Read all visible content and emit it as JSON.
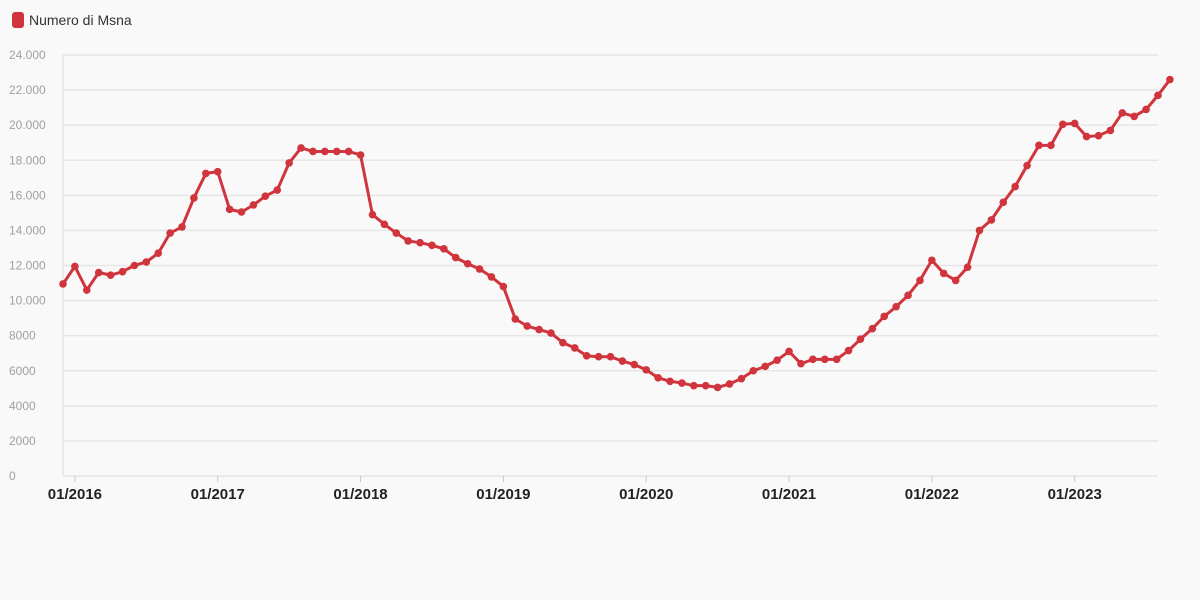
{
  "legend": {
    "label": "Numero di Msna",
    "color": "#d0343c"
  },
  "chart_data": {
    "type": "line",
    "title": "",
    "xlabel": "",
    "ylabel": "",
    "ylim": [
      0,
      24000
    ],
    "grid": true,
    "legend_position": "top-left",
    "y_ticks": [
      {
        "value": 0,
        "label": "0"
      },
      {
        "value": 2000,
        "label": "2000"
      },
      {
        "value": 4000,
        "label": "4000"
      },
      {
        "value": 6000,
        "label": "6000"
      },
      {
        "value": 8000,
        "label": "8000"
      },
      {
        "value": 10000,
        "label": "10.000"
      },
      {
        "value": 12000,
        "label": "12.000"
      },
      {
        "value": 14000,
        "label": "14.000"
      },
      {
        "value": 16000,
        "label": "16.000"
      },
      {
        "value": 18000,
        "label": "18.000"
      },
      {
        "value": 20000,
        "label": "20.000"
      },
      {
        "value": 22000,
        "label": "22.000"
      },
      {
        "value": 24000,
        "label": "24.000"
      }
    ],
    "x_ticks": [
      "01/2016",
      "01/2017",
      "01/2018",
      "01/2019",
      "01/2020",
      "01/2021",
      "01/2022",
      "01/2023"
    ],
    "x_start": "12/2015",
    "x_end": "08/2023",
    "series": [
      {
        "name": "Numero di Msna",
        "color": "#d0343c",
        "values": [
          10950,
          11950,
          10600,
          11600,
          11450,
          11650,
          12000,
          12200,
          12700,
          13850,
          14200,
          15850,
          17250,
          17350,
          15200,
          15050,
          15450,
          15950,
          16300,
          17850,
          18700,
          18500,
          18500,
          18500,
          18500,
          18300,
          14900,
          14350,
          13850,
          13400,
          13300,
          13150,
          12950,
          12450,
          12100,
          11800,
          11350,
          10800,
          8950,
          8550,
          8350,
          8150,
          7600,
          7300,
          6850,
          6800,
          6800,
          6550,
          6350,
          6050,
          5600,
          5400,
          5300,
          5150,
          5150,
          5050,
          5250,
          5550,
          6000,
          6250,
          6600,
          7100,
          6400,
          6650,
          6650,
          6650,
          7150,
          7800,
          8400,
          9100,
          9650,
          10300,
          11150,
          12300,
          11550,
          11150,
          11900,
          14000,
          14600,
          15600,
          16500,
          17700,
          18850,
          18850,
          20050,
          20100,
          19350,
          19400,
          19700,
          20700,
          20500,
          20900,
          21700,
          22600
        ]
      }
    ]
  }
}
